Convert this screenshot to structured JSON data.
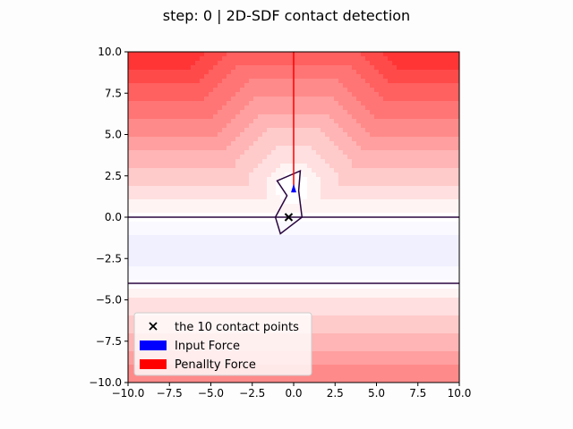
{
  "title": "step: 0 | 2D-SDF contact detection",
  "chart_data": {
    "type": "contour",
    "title": "step: 0 | 2D-SDF contact detection",
    "xlim": [
      -10,
      10
    ],
    "ylim": [
      -10,
      10
    ],
    "xticks": [
      -10.0,
      -7.5,
      -5.0,
      -2.5,
      0.0,
      2.5,
      5.0,
      7.5,
      10.0
    ],
    "yticks": [
      -10.0,
      -7.5,
      -5.0,
      -2.5,
      0.0,
      2.5,
      5.0,
      7.5,
      10.0
    ],
    "tick_labels": [
      "−10.0",
      "−7.5",
      "−5.0",
      "−2.5",
      "0.0",
      "2.5",
      "5.0",
      "7.5",
      "10.0"
    ],
    "colormap": "bwr",
    "sdf_levels": [
      -1.5,
      -1,
      0,
      1,
      2,
      3,
      4,
      5,
      6,
      7,
      8,
      9,
      10,
      11,
      12
    ],
    "shapes": {
      "ground_lines_y": [
        0,
        -4
      ],
      "polygon": [
        [
          -0.4,
          1.3
        ],
        [
          -1.1,
          0.0
        ],
        [
          -0.8,
          -1.0
        ],
        [
          0.5,
          -0.0
        ],
        [
          0.3,
          1.6
        ],
        [
          0.4,
          2.8
        ],
        [
          -1.0,
          2.2
        ]
      ],
      "contact_point": [
        -0.3,
        0.0
      ]
    },
    "forces": {
      "input_force": {
        "origin": [
          0.0,
          1.5
        ],
        "vector": [
          0.0,
          0.3
        ],
        "color": "#0000ff"
      },
      "penalty_force": {
        "origin": [
          0.0,
          1.5
        ],
        "vector": [
          0.0,
          8.5
        ],
        "color": "#ff0000"
      }
    },
    "legend": {
      "position": "lower-left",
      "entries": [
        {
          "label": "the 10 contact points",
          "marker": "x",
          "color": "#000000"
        },
        {
          "label": "Input Force",
          "marker": "patch",
          "color": "#0000ff"
        },
        {
          "label": "Penallty Force",
          "marker": "patch",
          "color": "#ff0000"
        }
      ]
    }
  }
}
